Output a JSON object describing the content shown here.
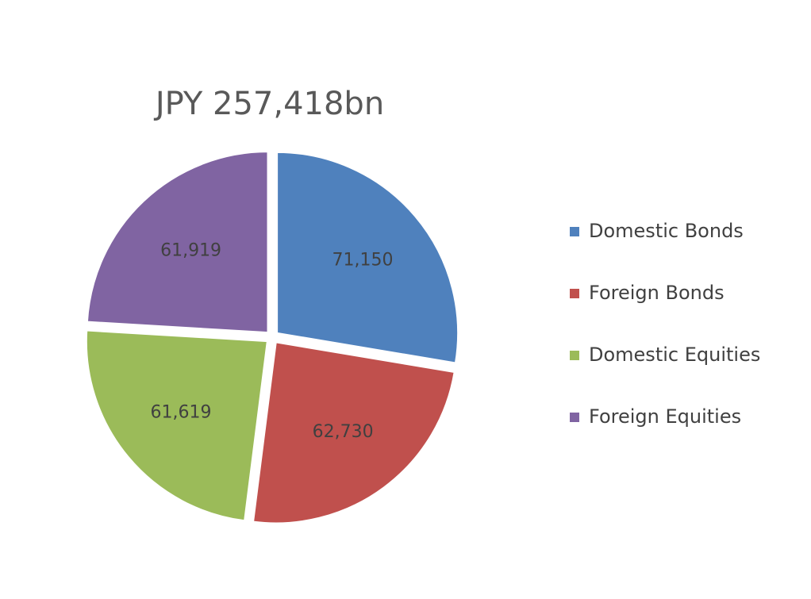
{
  "chart_data": {
    "type": "pie",
    "title": "JPY 257,418bn",
    "categories": [
      "Domestic Bonds",
      "Foreign Bonds",
      "Domestic Equities",
      "Foreign Equities"
    ],
    "values": [
      71150,
      62730,
      61619,
      61919
    ],
    "value_labels": [
      "71,150",
      "62,730",
      "61,619",
      "61,919"
    ],
    "colors": [
      "#4f81bd",
      "#c0504d",
      "#9bbb59",
      "#8064a2"
    ],
    "legend": "right"
  }
}
